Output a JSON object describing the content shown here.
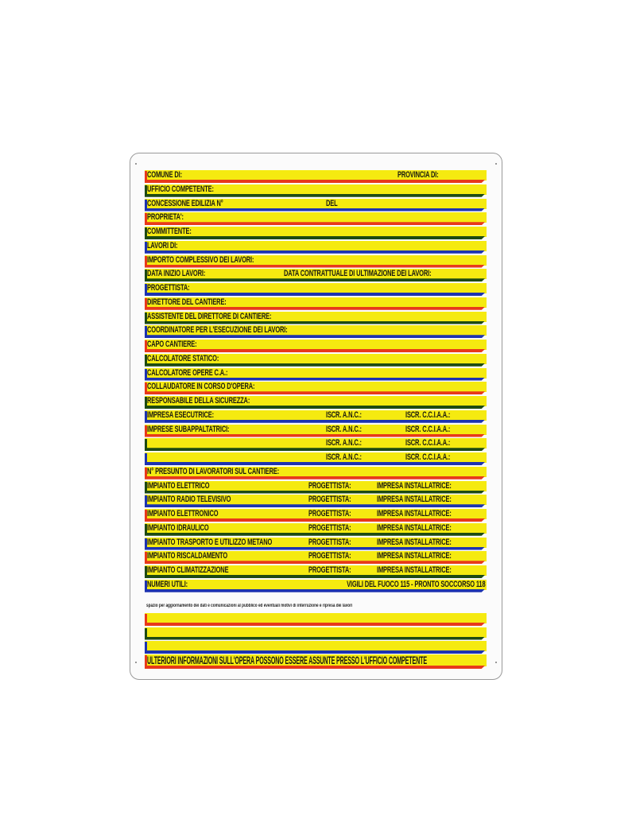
{
  "colors": {
    "yellow": "#f5ea10",
    "red": "#e8391a",
    "green": "#1d4a12",
    "blue": "#1d33b0"
  },
  "rows": [
    {
      "color": "red",
      "type": "prov",
      "fields": [
        "COMUNE DI:",
        "PROVINCIA DI:"
      ]
    },
    {
      "color": "green",
      "type": "single",
      "fields": [
        "UFFICIO COMPETENTE:"
      ]
    },
    {
      "color": "blue",
      "type": "conc",
      "fields": [
        "CONCESSIONE EDILIZIA N°",
        "DEL"
      ]
    },
    {
      "color": "red",
      "type": "single",
      "fields": [
        "PROPRIETA':"
      ]
    },
    {
      "color": "green",
      "type": "single",
      "fields": [
        "COMMITTENTE:"
      ]
    },
    {
      "color": "blue",
      "type": "single",
      "fields": [
        "LAVORI DI:"
      ]
    },
    {
      "color": "red",
      "type": "single",
      "fields": [
        "IMPORTO COMPLESSIVO DEI LAVORI:"
      ]
    },
    {
      "color": "green",
      "type": "date",
      "fields": [
        "DATA INIZIO LAVORI:",
        "DATA CONTRATTUALE DI ULTIMAZIONE DEI LAVORI:"
      ]
    },
    {
      "color": "blue",
      "type": "single",
      "fields": [
        "PROGETTISTA:"
      ]
    },
    {
      "color": "red",
      "type": "single",
      "fields": [
        "DIRETTORE DEL CANTIERE:"
      ]
    },
    {
      "color": "green",
      "type": "single",
      "fields": [
        "ASSISTENTE DEL DIRETTORE DI CANTIERE:"
      ]
    },
    {
      "color": "blue",
      "type": "single",
      "fields": [
        "COORDINATORE PER L'ESECUZIONE DEI LAVORI:"
      ]
    },
    {
      "color": "red",
      "type": "single",
      "fields": [
        "CAPO CANTIERE:"
      ]
    },
    {
      "color": "green",
      "type": "single",
      "fields": [
        "CALCOLATORE STATICO:"
      ]
    },
    {
      "color": "blue",
      "type": "single",
      "fields": [
        "CALCOLATORE OPERE C.A.:"
      ]
    },
    {
      "color": "red",
      "type": "single",
      "fields": [
        "COLLAUDATORE IN CORSO D'OPERA:"
      ]
    },
    {
      "color": "green",
      "type": "single",
      "fields": [
        "RESPONSABILE DELLA SICUREZZA:"
      ]
    },
    {
      "color": "blue",
      "type": "three",
      "fields": [
        "IMPRESA ESECUTRICE:",
        "ISCR. A.N.C.:",
        "ISCR. C.C.I.A.A.:"
      ]
    },
    {
      "color": "red",
      "type": "three",
      "fields": [
        "IMPRESE SUBAPPALTATRICI:",
        "ISCR. A.N.C.:",
        "ISCR. C.C.I.A.A.:"
      ]
    },
    {
      "color": "green",
      "type": "three",
      "fields": [
        "",
        "ISCR. A.N.C.:",
        "ISCR. C.C.I.A.A.:"
      ]
    },
    {
      "color": "blue",
      "type": "three",
      "fields": [
        "",
        "ISCR. A.N.C.:",
        "ISCR. C.C.I.A.A.:"
      ]
    },
    {
      "color": "red",
      "type": "single",
      "fields": [
        "N° PRESUNTO DI LAVORATORI SUL CANTIERE:"
      ]
    },
    {
      "color": "green",
      "type": "imp",
      "fields": [
        "IMPIANTO ELETTRICO",
        "PROGETTISTA:",
        "IMPRESA INSTALLATRICE:"
      ]
    },
    {
      "color": "blue",
      "type": "imp",
      "fields": [
        "IMPIANTO RADIO TELEVISIVO",
        "PROGETTISTA:",
        "IMPRESA INSTALLATRICE:"
      ]
    },
    {
      "color": "red",
      "type": "imp",
      "fields": [
        "IMPIANTO ELETTRONICO",
        "PROGETTISTA:",
        "IMPRESA INSTALLATRICE:"
      ]
    },
    {
      "color": "green",
      "type": "imp",
      "fields": [
        "IMPIANTO IDRAULICO",
        "PROGETTISTA:",
        "IMPRESA INSTALLATRICE:"
      ]
    },
    {
      "color": "blue",
      "type": "imp",
      "fields": [
        "IMPIANTO TRASPORTO E UTILIZZO METANO",
        "PROGETTISTA:",
        "IMPRESA INSTALLATRICE:"
      ]
    },
    {
      "color": "red",
      "type": "imp",
      "fields": [
        "IMPIANTO RISCALDAMENTO",
        "PROGETTISTA:",
        "IMPRESA INSTALLATRICE:"
      ]
    },
    {
      "color": "green",
      "type": "imp",
      "fields": [
        "IMPIANTO CLIMATIZZAZIONE",
        "PROGETTISTA:",
        "IMPRESA INSTALLATRICE:"
      ]
    },
    {
      "color": "blue",
      "type": "numeri",
      "fields": [
        "NUMERI UTILI:",
        "VIGILI DEL FUOCO 115 - PRONTO SOCCORSO 118"
      ]
    }
  ],
  "caption": "spazio per aggiornamento dei dati e comunicazioni al pubblico ed eventuali motivi di interruzione e ripresa dei lavori",
  "blank_rows": [
    "red",
    "green",
    "blue"
  ],
  "footer": {
    "color": "red",
    "text": "ULTERIORI INFORMAZIONI SULL'OPERA POSSONO ESSERE ASSUNTE PRESSO L'UFFICIO COMPETENTE"
  }
}
